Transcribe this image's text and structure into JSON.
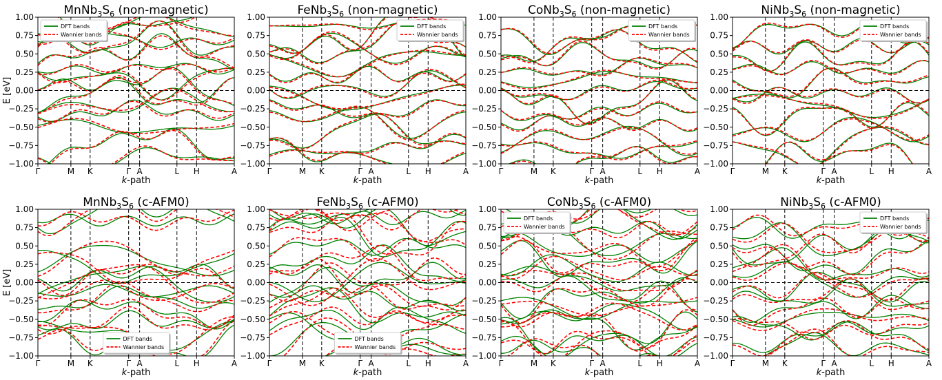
{
  "figure": {
    "legend_dft": "DFT bands",
    "legend_wannier": "Wannier bands",
    "xlabel_prefix": "k",
    "xlabel_suffix": "-path",
    "ylabel": "E [eV]",
    "colors": {
      "dft": "#008000",
      "wannier": "#ff0000",
      "reference": "#000000"
    }
  },
  "chart_data": [
    {
      "type": "line",
      "compound": "MnNb",
      "sub1": "3",
      "sub2": "6",
      "state": "(non-magnetic)",
      "legend": "top-left",
      "ylim": [
        -1.0,
        1.0
      ],
      "xticks": [
        "Γ",
        "M",
        "K",
        "Γ",
        "A",
        "L",
        "H",
        "A"
      ],
      "yticks": [
        "1.00",
        "0.75",
        "0.50",
        "0.25",
        "0.00",
        "−0.25",
        "−0.50",
        "−0.75",
        "−1.00"
      ],
      "xlabel": "k-path",
      "ylabel": "E [eV]",
      "show_ylabel": true,
      "seed": 11,
      "bands": 14,
      "offset": -0.03,
      "band_energies": [
        -0.95,
        -0.75,
        -0.5,
        -0.3,
        -0.18,
        0.0,
        0.02,
        0.15,
        0.3,
        0.5,
        0.65,
        0.72,
        0.85,
        0.95
      ]
    },
    {
      "type": "line",
      "compound": "FeNb",
      "sub1": "3",
      "sub2": "6",
      "state": "(non-magnetic)",
      "legend": "top-right",
      "ylim": [
        -1.0,
        1.0
      ],
      "xticks": [
        "Γ",
        "M",
        "K",
        "Γ",
        "A",
        "L",
        "H",
        "A"
      ],
      "yticks": [
        "1.00",
        "0.75",
        "0.50",
        "0.25",
        "0.00",
        "−0.25",
        "−0.50",
        "−0.75",
        "−1.00"
      ],
      "xlabel": "k-path",
      "ylabel": "E [eV]",
      "show_ylabel": false,
      "seed": 23,
      "bands": 13,
      "offset": -0.02,
      "band_energies": [
        -0.92,
        -0.78,
        -0.6,
        -0.4,
        -0.25,
        -0.1,
        0.05,
        0.2,
        0.4,
        0.55,
        0.62,
        0.75,
        0.9
      ]
    },
    {
      "type": "line",
      "compound": "CoNb",
      "sub1": "3",
      "sub2": "6",
      "state": "(non-magnetic)",
      "legend": "top-right",
      "ylim": [
        -1.0,
        1.0
      ],
      "xticks": [
        "Γ",
        "M",
        "K",
        "Γ",
        "A",
        "L",
        "H",
        "A"
      ],
      "yticks": [
        "1.00",
        "0.75",
        "0.50",
        "0.25",
        "0.00",
        "−0.25",
        "−0.50",
        "−0.75",
        "−1.00"
      ],
      "xlabel": "k-path",
      "ylabel": "E [eV]",
      "show_ylabel": false,
      "seed": 37,
      "bands": 12,
      "offset": -0.02,
      "band_energies": [
        -0.95,
        -0.8,
        -0.65,
        -0.45,
        -0.3,
        -0.15,
        0.0,
        0.15,
        0.3,
        0.45,
        0.6,
        0.75
      ]
    },
    {
      "type": "line",
      "compound": "NiNb",
      "sub1": "3",
      "sub2": "6",
      "state": "(non-magnetic)",
      "legend": "top-right",
      "ylim": [
        -1.0,
        1.0
      ],
      "xticks": [
        "Γ",
        "M",
        "K",
        "Γ",
        "A",
        "L",
        "H",
        "A"
      ],
      "yticks": [
        "1.00",
        "0.75",
        "0.50",
        "0.25",
        "0.00",
        "−0.25",
        "−0.50",
        "−0.75",
        "−1.00"
      ],
      "xlabel": "k-path",
      "ylabel": "E [eV]",
      "show_ylabel": false,
      "seed": 41,
      "bands": 11,
      "offset": -0.02,
      "band_energies": [
        -0.9,
        -0.75,
        -0.55,
        -0.35,
        -0.2,
        -0.05,
        0.1,
        0.3,
        0.45,
        0.6,
        0.8
      ]
    },
    {
      "type": "line",
      "compound": "MnNb",
      "sub1": "3",
      "sub2": "6",
      "state": "(c-AFM0)",
      "legend": "bottom-center",
      "ylim": [
        -1.0,
        1.0
      ],
      "xticks": [
        "Γ",
        "M",
        "K",
        "Γ",
        "A",
        "L",
        "H",
        "A"
      ],
      "yticks": [
        "1.00",
        "0.75",
        "0.50",
        "0.25",
        "0.00",
        "−0.25",
        "−0.50",
        "−0.75",
        "−1.00"
      ],
      "xlabel": "k-path",
      "ylabel": "E [eV]",
      "show_ylabel": true,
      "seed": 53,
      "bands": 12,
      "offset": -0.06,
      "band_energies": [
        -0.85,
        -0.7,
        -0.55,
        -0.4,
        -0.25,
        -0.12,
        0.0,
        0.1,
        0.2,
        0.3,
        0.85,
        0.95
      ]
    },
    {
      "type": "line",
      "compound": "FeNb",
      "sub1": "3",
      "sub2": "6",
      "state": "(c-AFM0)",
      "legend": "bottom-center",
      "ylim": [
        -1.0,
        1.0
      ],
      "xticks": [
        "Γ",
        "M",
        "K",
        "Γ",
        "A",
        "L",
        "H",
        "A"
      ],
      "yticks": [
        "1.00",
        "0.75",
        "0.50",
        "0.25",
        "0.00",
        "−0.25",
        "−0.50",
        "−0.75",
        "−1.00"
      ],
      "xlabel": "k-path",
      "ylabel": "E [eV]",
      "show_ylabel": false,
      "seed": 67,
      "bands": 15,
      "offset": -0.08,
      "band_energies": [
        -0.95,
        -0.8,
        -0.65,
        -0.5,
        -0.35,
        -0.2,
        -0.1,
        0.0,
        0.1,
        0.25,
        0.5,
        0.65,
        0.8,
        0.9,
        0.97
      ]
    },
    {
      "type": "line",
      "compound": "CoNb",
      "sub1": "3",
      "sub2": "6",
      "state": "(c-AFM0)",
      "legend": "top-left",
      "ylim": [
        -1.0,
        1.0
      ],
      "xticks": [
        "Γ",
        "M",
        "K",
        "Γ",
        "A",
        "L",
        "H",
        "A"
      ],
      "yticks": [
        "1.00",
        "0.75",
        "0.50",
        "0.25",
        "0.00",
        "−0.25",
        "−0.50",
        "−0.75",
        "−1.00"
      ],
      "xlabel": "k-path",
      "ylabel": "E [eV]",
      "show_ylabel": false,
      "seed": 79,
      "bands": 16,
      "offset": -0.06,
      "band_energies": [
        -0.95,
        -0.85,
        -0.72,
        -0.6,
        -0.45,
        -0.32,
        -0.2,
        -0.08,
        0.05,
        0.18,
        0.3,
        0.45,
        0.6,
        0.72,
        0.85,
        0.95
      ]
    },
    {
      "type": "line",
      "compound": "NiNb",
      "sub1": "3",
      "sub2": "6",
      "state": "(c-AFM0)",
      "legend": "top-right",
      "ylim": [
        -1.0,
        1.0
      ],
      "xticks": [
        "Γ",
        "M",
        "K",
        "Γ",
        "A",
        "L",
        "H",
        "A"
      ],
      "yticks": [
        "1.00",
        "0.75",
        "0.50",
        "0.25",
        "0.00",
        "−0.25",
        "−0.50",
        "−0.75",
        "−1.00"
      ],
      "xlabel": "k-path",
      "ylabel": "E [eV]",
      "show_ylabel": false,
      "seed": 97,
      "bands": 13,
      "offset": -0.05,
      "band_energies": [
        -0.9,
        -0.75,
        -0.62,
        -0.48,
        -0.35,
        -0.2,
        -0.08,
        0.05,
        0.2,
        0.35,
        0.5,
        0.6,
        0.75
      ]
    }
  ]
}
